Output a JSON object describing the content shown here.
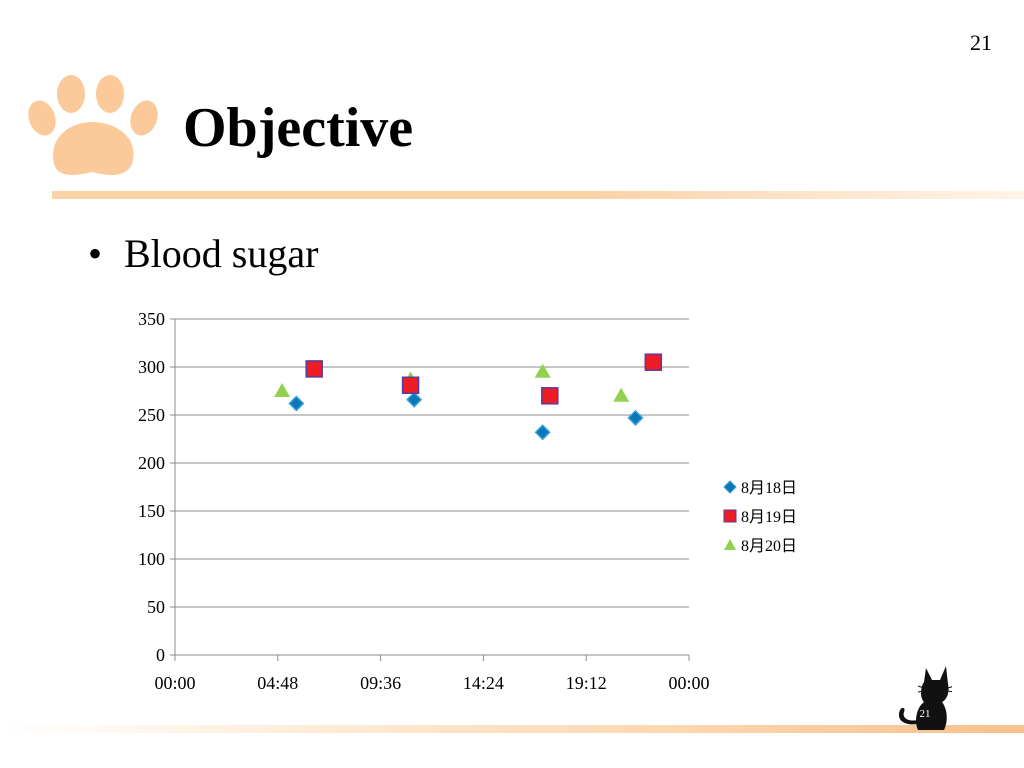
{
  "slide": {
    "number": "21",
    "title": "Objective",
    "bullet": "Blood sugar",
    "footer_number": "21"
  },
  "decor": {
    "paw_icon": "paw-print",
    "cat_icon": "black-cat",
    "accent_color": "#fbc99a"
  },
  "chart_data": {
    "type": "scatter",
    "title": "",
    "xlabel": "",
    "ylabel": "",
    "x_axis": {
      "unit": "time-of-day",
      "range": [
        "00:00",
        "00:00 (+1 day)"
      ],
      "tick_labels": [
        "00:00",
        "04:48",
        "09:36",
        "14:24",
        "19:12",
        "00:00"
      ]
    },
    "ylim": [
      0,
      350
    ],
    "y_tick_labels": [
      "0",
      "50",
      "100",
      "150",
      "200",
      "250",
      "300",
      "350"
    ],
    "grid": "horizontal",
    "legend_position": "right",
    "series": [
      {
        "name": "8月18日",
        "marker": "diamond",
        "color": "#0a77b8",
        "points": [
          {
            "x": "05:40",
            "y": 262
          },
          {
            "x": "11:10",
            "y": 266
          },
          {
            "x": "17:10",
            "y": 232
          },
          {
            "x": "21:30",
            "y": 247
          }
        ]
      },
      {
        "name": "8月19日",
        "marker": "square",
        "color": "#ee1c25",
        "points": [
          {
            "x": "06:30",
            "y": 298
          },
          {
            "x": "11:00",
            "y": 281
          },
          {
            "x": "17:30",
            "y": 270
          },
          {
            "x": "22:20",
            "y": 305
          }
        ]
      },
      {
        "name": "8月20日",
        "marker": "triangle",
        "color": "#92d050",
        "points": [
          {
            "x": "05:00",
            "y": 275
          },
          {
            "x": "11:00",
            "y": 287
          },
          {
            "x": "17:10",
            "y": 295
          },
          {
            "x": "20:50",
            "y": 270
          }
        ]
      }
    ]
  }
}
